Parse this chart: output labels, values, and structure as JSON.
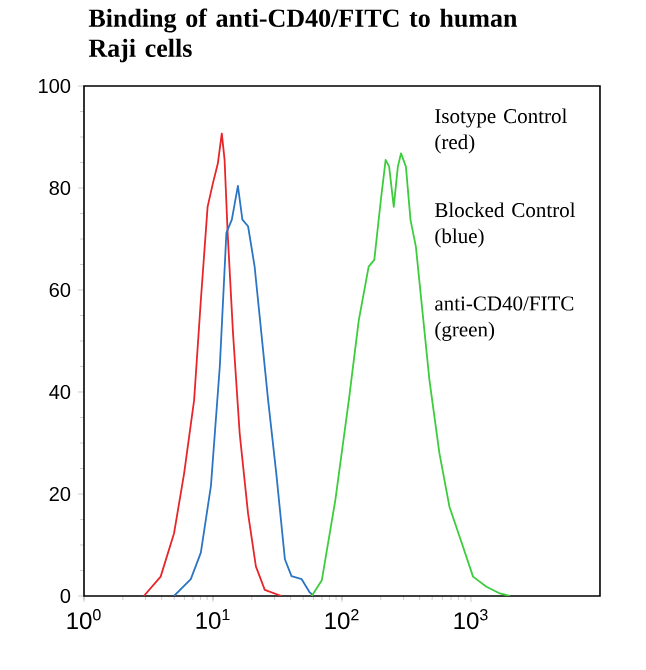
{
  "chart_data": {
    "type": "line",
    "title": "Binding of anti-CD40/FITC to human Raji cells",
    "annotations": [
      "Isotype Control (red)",
      "Blocked Control (blue)",
      "anti-CD40/FITC (green)"
    ],
    "log": "x",
    "xlim": [
      1,
      10000
    ],
    "xticks": [
      {
        "value": 1,
        "label": "10$^{0}$"
      },
      {
        "value": 10,
        "label": "10$^{1}$"
      },
      {
        "value": 100,
        "label": "10$^{2}$"
      },
      {
        "value": 1000,
        "label": "10$^{3}$"
      }
    ],
    "ylim": [
      0,
      100
    ],
    "yticks": [
      0,
      20,
      40,
      60,
      80,
      100
    ],
    "series": [
      {
        "color": "#e8262a",
        "x": [
          2.91,
          3.93,
          4.99,
          5.97,
          7.14,
          8.05,
          9.08,
          10.0,
          10.9,
          11.7,
          12.3,
          13.0,
          14.3,
          16.1,
          18.7,
          21.5,
          25.2,
          34.0
        ],
        "values": [
          0,
          3.8,
          12.3,
          24,
          38.4,
          58,
          76.3,
          81,
          84.8,
          90.7,
          85.5,
          71,
          51.5,
          31.9,
          16.2,
          5.8,
          1.2,
          0
        ]
      },
      {
        "color": "#2a75c4",
        "x": [
          4.99,
          6.73,
          8.05,
          9.64,
          11.3,
          12.7,
          14.0,
          15.6,
          16.9,
          18.7,
          21.0,
          23.7,
          26.7,
          30.9,
          36.1,
          40.6,
          48.7,
          56.2,
          60.4
        ],
        "values": [
          0,
          3.3,
          8.5,
          21.6,
          45.1,
          71.2,
          73.8,
          80.4,
          73.8,
          72.5,
          64.7,
          51.6,
          38.6,
          24.2,
          7.2,
          3.9,
          3.3,
          0.7,
          0
        ]
      },
      {
        "color": "#3ccc3c",
        "x": [
          58.3,
          69.8,
          88.8,
          113,
          135,
          161,
          178,
          200,
          218,
          232,
          252,
          271,
          287,
          313,
          340,
          374,
          422,
          476,
          569,
          681,
          866,
          1037,
          1318,
          1675,
          2004
        ],
        "values": [
          0,
          3.1,
          18.8,
          38.4,
          54.1,
          64.6,
          65.9,
          77.6,
          85.5,
          84.2,
          76.3,
          84.2,
          86.8,
          84.2,
          73.7,
          68.5,
          55.4,
          42.4,
          28,
          17.5,
          9.7,
          3.8,
          1.8,
          0.5,
          0
        ]
      }
    ]
  }
}
